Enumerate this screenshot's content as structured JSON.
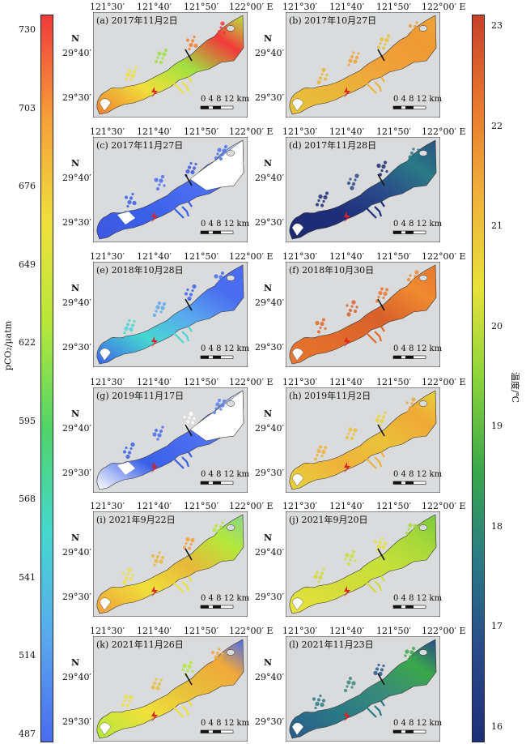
{
  "colorbar_left": {
    "title": "pCO₂/μatm",
    "ticks": [
      "730",
      "703",
      "676",
      "649",
      "622",
      "595",
      "568",
      "541",
      "514",
      "487"
    ],
    "colors": [
      "#f23a3a",
      "#f6a03a",
      "#f0e03a",
      "#b4e83a",
      "#4fd46a",
      "#45d8d0",
      "#5aa8ee",
      "#4a6cf0"
    ]
  },
  "colorbar_right": {
    "title": "温度/℃",
    "ticks": [
      "23",
      "22",
      "21",
      "20",
      "19",
      "18",
      "17",
      "16"
    ],
    "colors": [
      "#c8402a",
      "#e8782e",
      "#f0b23a",
      "#e8e23a",
      "#8ad43a",
      "#3aa84a",
      "#2a7a86",
      "#2a4a8a",
      "#1e2e7a"
    ]
  },
  "axes": {
    "lon_labels": [
      "121°30′",
      "121°40′",
      "121°50′",
      "122°00′ E"
    ],
    "lat_labels": [
      "29°40′",
      "29°30′"
    ],
    "north": "N"
  },
  "scale_bar": {
    "label": "0  4  8  12 km"
  },
  "panels": [
    {
      "label": "(a) 2017年11月2日",
      "variable": "pCO2",
      "fill": [
        "#f0e03a",
        "#a0e040",
        "#f08030",
        "#f23a3a"
      ],
      "upper_fill": "#b8e840",
      "white": false
    },
    {
      "label": "(b) 2017年10月27日",
      "variable": "temperature",
      "fill": [
        "#eab53a",
        "#f0a23a",
        "#e8c23a",
        "#f09a34"
      ],
      "upper_fill": "#eca438",
      "white": false
    },
    {
      "label": "(c) 2017年11月27日",
      "variable": "pCO2",
      "fill": [
        "#3a60e8",
        "#4a6cf0",
        "#3f58e0",
        "#4e72f2"
      ],
      "upper_fill": "#ffffff",
      "white": true
    },
    {
      "label": "(d) 2017年11月28日",
      "variable": "temperature",
      "fill": [
        "#1e2e7a",
        "#2a4a8a",
        "#1c2a70",
        "#2a7a86"
      ],
      "upper_fill": "#2a5080",
      "white": false
    },
    {
      "label": "(e) 2018年10月28日",
      "variable": "pCO2",
      "fill": [
        "#45d8d0",
        "#5aa8ee",
        "#3c64e6",
        "#4a6cf0"
      ],
      "upper_fill": "#4a6cf0",
      "white": false
    },
    {
      "label": "(f) 2018年10月30日",
      "variable": "temperature",
      "fill": [
        "#e06a2a",
        "#d8602a",
        "#e8782e",
        "#f08a30"
      ],
      "upper_fill": "#e8782e",
      "white": false
    },
    {
      "label": "(g) 2019年11月17日",
      "variable": "pCO2",
      "fill": [
        "#3a60e8",
        "#4a6cf0",
        "#ffffff",
        "#5a80f0"
      ],
      "upper_fill": "#ffffff",
      "white": true
    },
    {
      "label": "(h) 2019年11月2日",
      "variable": "temperature",
      "fill": [
        "#f0b23a",
        "#eac23a",
        "#e8d23a",
        "#f0a836"
      ],
      "upper_fill": "#e8d03a",
      "white": false
    },
    {
      "label": "(i) 2021年9月22日",
      "variable": "pCO2",
      "fill": [
        "#f0e03a",
        "#e8b83a",
        "#f0a03a",
        "#b4e83a"
      ],
      "upper_fill": "#8ad48a",
      "white": false
    },
    {
      "label": "(j) 2021年9月20日",
      "variable": "temperature",
      "fill": [
        "#d4dc3a",
        "#c8e03a",
        "#e8e23a",
        "#a8d83a"
      ],
      "upper_fill": "#7ccc3a",
      "white": false
    },
    {
      "label": "(k) 2021年11月26日",
      "variable": "pCO2",
      "fill": [
        "#f0e03a",
        "#e8c03a",
        "#b4e83a",
        "#f0a83a"
      ],
      "upper_fill": "#4a6cf0",
      "white": false
    },
    {
      "label": "(l) 2021年11月23日",
      "variable": "temperature",
      "fill": [
        "#2a7a86",
        "#3a8a7a",
        "#2a5a8a",
        "#3aa84a"
      ],
      "upper_fill": "#2a4a8a",
      "white": false
    }
  ]
}
